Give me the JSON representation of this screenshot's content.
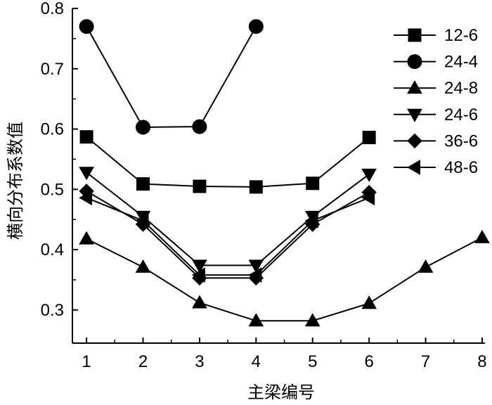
{
  "chart_data": {
    "type": "line",
    "xlabel": "主梁编号",
    "ylabel": "横向分布系数值",
    "xlim": [
      0.75,
      8.05
    ],
    "ylim": [
      0.245,
      0.8
    ],
    "x_ticks": [
      1,
      2,
      3,
      4,
      5,
      6,
      7,
      8
    ],
    "x_tick_labels": [
      "1",
      "2",
      "3",
      "4",
      "5",
      "6",
      "7",
      "8"
    ],
    "y_ticks": [
      0.3,
      0.4,
      0.5,
      0.6,
      0.7,
      0.8
    ],
    "y_tick_labels": [
      "0.3",
      "0.4",
      "0.5",
      "0.6",
      "0.7",
      "0.8"
    ],
    "grid": false,
    "legend_position": "top-right",
    "series": [
      {
        "name": "12-6",
        "marker": "square",
        "x": [
          1,
          2,
          3,
          4,
          5,
          6
        ],
        "values": [
          0.587,
          0.509,
          0.505,
          0.504,
          0.51,
          0.586
        ]
      },
      {
        "name": "24-4",
        "marker": "circle",
        "x": [
          1,
          2,
          3,
          4
        ],
        "values": [
          0.77,
          0.603,
          0.604,
          0.77
        ]
      },
      {
        "name": "24-8",
        "marker": "triangle-up",
        "x": [
          1,
          2,
          3,
          4,
          5,
          6,
          7,
          8
        ],
        "values": [
          0.418,
          0.371,
          0.312,
          0.282,
          0.282,
          0.311,
          0.371,
          0.42
        ]
      },
      {
        "name": "24-6",
        "marker": "triangle-down",
        "x": [
          1,
          2,
          3,
          4,
          5,
          6
        ],
        "values": [
          0.528,
          0.455,
          0.374,
          0.374,
          0.455,
          0.525
        ]
      },
      {
        "name": "36-6",
        "marker": "diamond",
        "x": [
          1,
          2,
          3,
          4,
          5,
          6
        ],
        "values": [
          0.497,
          0.442,
          0.353,
          0.353,
          0.442,
          0.495
        ]
      },
      {
        "name": "48-6",
        "marker": "triangle-left",
        "x": [
          1,
          2,
          3,
          4,
          5,
          6
        ],
        "values": [
          0.486,
          0.448,
          0.358,
          0.358,
          0.448,
          0.486
        ]
      }
    ]
  }
}
